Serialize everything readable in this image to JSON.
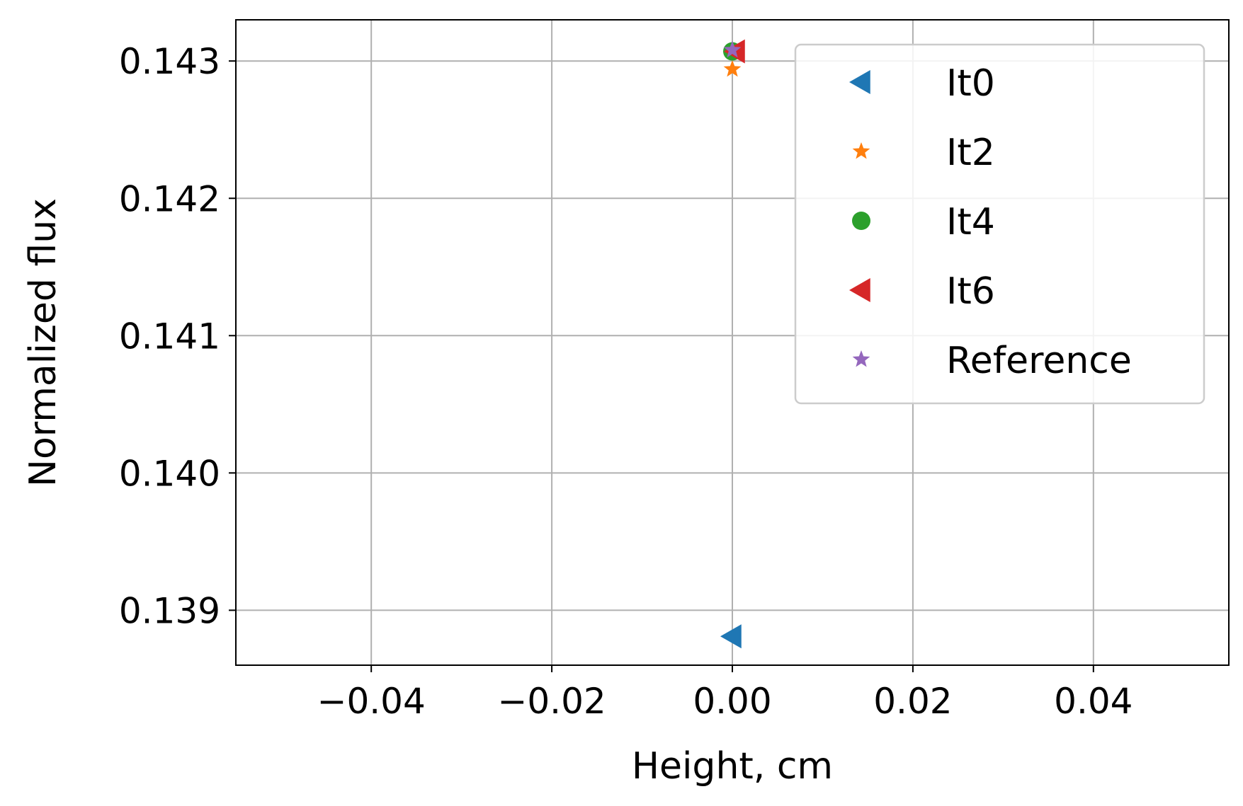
{
  "chart_data": {
    "type": "scatter",
    "title": "",
    "xlabel": "Height, cm",
    "ylabel": "Normalized flux",
    "xlim": [
      -0.055,
      0.055
    ],
    "ylim": [
      0.1386,
      0.1433
    ],
    "xticks": [
      -0.04,
      -0.02,
      0.0,
      0.02,
      0.04
    ],
    "xtick_labels": [
      "−0.04",
      "−0.02",
      "0.00",
      "0.02",
      "0.04"
    ],
    "yticks": [
      0.139,
      0.14,
      0.141,
      0.142,
      0.143
    ],
    "ytick_labels": [
      "0.139",
      "0.140",
      "0.141",
      "0.142",
      "0.143"
    ],
    "grid": true,
    "legend_position": "top-right",
    "series": [
      {
        "name": "It0",
        "marker": "triangle-left",
        "color": "#1f77b4",
        "x": [
          0.0
        ],
        "y": [
          0.13881
        ]
      },
      {
        "name": "It2",
        "marker": "star",
        "color": "#ff7f0e",
        "x": [
          0.0
        ],
        "y": [
          0.14294
        ]
      },
      {
        "name": "It4",
        "marker": "circle",
        "color": "#2ca02c",
        "x": [
          0.0
        ],
        "y": [
          0.14307
        ]
      },
      {
        "name": "It6",
        "marker": "triangle-left",
        "color": "#d62728",
        "x": [
          0.0
        ],
        "y": [
          0.14307
        ]
      },
      {
        "name": "Reference",
        "marker": "star",
        "color": "#9467bd",
        "x": [
          0.0
        ],
        "y": [
          0.14308
        ]
      }
    ]
  }
}
